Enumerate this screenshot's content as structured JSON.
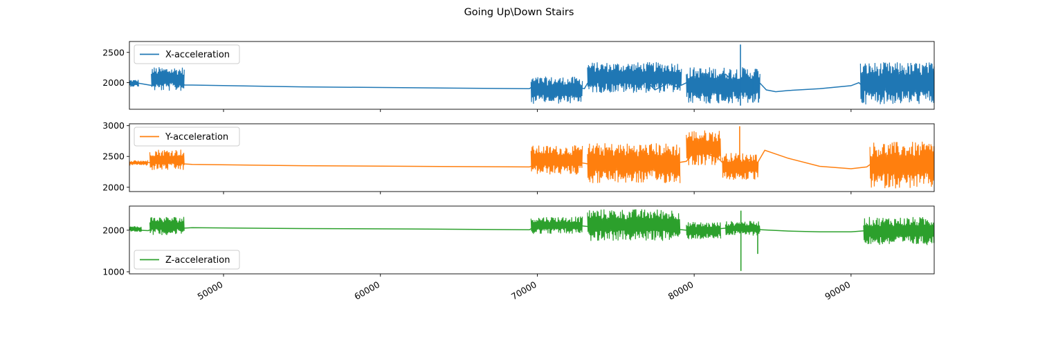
{
  "figure": {
    "title": "Going Up\\Down Stairs"
  },
  "chart_data": [
    {
      "type": "line",
      "title": "",
      "xlabel": "",
      "ylabel": "",
      "xlim": [
        44000,
        95300
      ],
      "ylim": [
        1560,
        2680
      ],
      "x_ticks": [
        50000,
        60000,
        70000,
        80000,
        90000
      ],
      "x_tick_labels": [
        "50000",
        "60000",
        "70000",
        "80000",
        "90000"
      ],
      "x_tick_labels_visible": false,
      "y_ticks": [
        2000,
        2500
      ],
      "y_tick_labels": [
        "2000",
        "2500"
      ],
      "grid": false,
      "legend_position": "upper left",
      "series": [
        {
          "name": "X-acceleration",
          "color": "#1f77b4",
          "x": [
            44000,
            44600,
            45500,
            45800,
            46300,
            46900,
            47300,
            47500,
            48000,
            55000,
            62000,
            69500,
            69800,
            70200,
            71000,
            72000,
            73000,
            73200,
            73500,
            74500,
            75500,
            76000,
            76500,
            77000,
            77500,
            78000,
            78400,
            78800,
            79200,
            79600,
            80000,
            80500,
            81000,
            81500,
            82000,
            82600,
            83000,
            83400,
            83800,
            84200,
            84600,
            85200,
            86000,
            88000,
            90000,
            90500,
            91000,
            91500,
            92000,
            92500,
            93000,
            93300,
            93800,
            94200,
            94700,
            95300
          ],
          "y": [
            2000,
            1990,
            1950,
            2080,
            2020,
            2150,
            2060,
            1960,
            1960,
            1930,
            1915,
            1900,
            1960,
            1880,
            1930,
            1970,
            1900,
            1990,
            2030,
            2010,
            2060,
            2200,
            2130,
            2010,
            1880,
            1950,
            2010,
            1930,
            1960,
            2010,
            2100,
            2060,
            2030,
            2080,
            2140,
            1990,
            2070,
            2090,
            2020,
            1990,
            1880,
            1850,
            1870,
            1900,
            1950,
            2000,
            1870,
            1850,
            1930,
            2040,
            2150,
            2200,
            1860,
            1900,
            1960,
            1880
          ],
          "ranges": [
            {
              "x": [
                44000,
                44600
              ],
              "low": 1930,
              "high": 2050
            },
            {
              "x": [
                45400,
                47500
              ],
              "low": 1860,
              "high": 2260
            },
            {
              "x": [
                69600,
                72900
              ],
              "low": 1650,
              "high": 2100
            },
            {
              "x": [
                73200,
                79200
              ],
              "low": 1830,
              "high": 2340
            },
            {
              "x": [
                79500,
                84200
              ],
              "low": 1650,
              "high": 2260
            },
            {
              "x": [
                90600,
                95300
              ],
              "low": 1640,
              "high": 2340
            }
          ],
          "spikes": [
            {
              "x": 82950,
              "low": 1620,
              "high": 2630
            },
            {
              "x": 83750,
              "low": 1670,
              "high": 2050
            },
            {
              "x": 84100,
              "low": 1670,
              "high": 2060
            }
          ]
        }
      ]
    },
    {
      "type": "line",
      "title": "",
      "xlabel": "",
      "ylabel": "",
      "xlim": [
        44000,
        95300
      ],
      "ylim": [
        1930,
        3030
      ],
      "x_ticks": [
        50000,
        60000,
        70000,
        80000,
        90000
      ],
      "x_tick_labels": [
        "50000",
        "60000",
        "70000",
        "80000",
        "90000"
      ],
      "x_tick_labels_visible": false,
      "y_ticks": [
        2000,
        2500,
        3000
      ],
      "y_tick_labels": [
        "2000",
        "2500",
        "3000"
      ],
      "grid": false,
      "legend_position": "upper left",
      "series": [
        {
          "name": "Y-acceleration",
          "color": "#ff7f0e",
          "x": [
            44000,
            44500,
            45000,
            45500,
            46200,
            46800,
            47400,
            48000,
            55000,
            62000,
            69500,
            69800,
            70500,
            71500,
            72500,
            73200,
            73800,
            74500,
            75500,
            76500,
            77500,
            78500,
            79000,
            79500,
            80000,
            80500,
            81000,
            81500,
            82000,
            82500,
            83000,
            83500,
            84000,
            84500,
            86000,
            88000,
            90000,
            91000,
            91500,
            92500,
            93500,
            94500,
            95300
          ],
          "y": [
            2400,
            2390,
            2410,
            2390,
            2480,
            2430,
            2380,
            2370,
            2350,
            2340,
            2330,
            2360,
            2420,
            2450,
            2410,
            2380,
            2430,
            2390,
            2400,
            2380,
            2420,
            2350,
            2400,
            2420,
            2570,
            2640,
            2520,
            2480,
            2350,
            2420,
            2380,
            2450,
            2380,
            2600,
            2470,
            2340,
            2300,
            2330,
            2420,
            2350,
            2450,
            2380,
            2480
          ],
          "ranges": [
            {
              "x": [
                44000,
                45200
              ],
              "low": 2350,
              "high": 2440
            },
            {
              "x": [
                45300,
                47500
              ],
              "low": 2270,
              "high": 2620
            },
            {
              "x": [
                69600,
                72900
              ],
              "low": 2200,
              "high": 2680
            },
            {
              "x": [
                73200,
                79100
              ],
              "low": 2060,
              "high": 2720
            },
            {
              "x": [
                79500,
                81700
              ],
              "low": 2350,
              "high": 2930
            },
            {
              "x": [
                81800,
                84100
              ],
              "low": 2110,
              "high": 2560
            },
            {
              "x": [
                91200,
                95300
              ],
              "low": 1980,
              "high": 2740
            }
          ],
          "spikes": [
            {
              "x": 82900,
              "low": 2320,
              "high": 2990
            }
          ]
        }
      ]
    },
    {
      "type": "line",
      "title": "",
      "xlabel": "",
      "ylabel": "",
      "xlim": [
        44000,
        95300
      ],
      "ylim": [
        950,
        2580
      ],
      "x_ticks": [
        50000,
        60000,
        70000,
        80000,
        90000
      ],
      "x_tick_labels": [
        "50000",
        "60000",
        "70000",
        "80000",
        "90000"
      ],
      "x_tick_labels_visible": true,
      "y_ticks": [
        1000,
        2000
      ],
      "y_tick_labels": [
        "1000",
        "2000"
      ],
      "grid": false,
      "legend_position": "lower left",
      "series": [
        {
          "name": "Z-acceleration",
          "color": "#2ca02c",
          "x": [
            44000,
            44600,
            45200,
            45800,
            46400,
            47000,
            47500,
            48000,
            55000,
            62000,
            69500,
            69800,
            70500,
            71500,
            72500,
            73200,
            74000,
            75000,
            76000,
            77000,
            78000,
            79000,
            79500,
            80000,
            81000,
            82000,
            82500,
            83000,
            83500,
            84000,
            84300,
            86000,
            88000,
            90000,
            91000,
            92000,
            93000,
            94000,
            95300
          ],
          "y": [
            2060,
            2000,
            1990,
            2080,
            2150,
            2100,
            2050,
            2060,
            2040,
            2030,
            2010,
            2080,
            2150,
            2130,
            2120,
            2090,
            2060,
            2090,
            2040,
            2110,
            2030,
            2020,
            2000,
            2070,
            2010,
            2050,
            2010,
            2060,
            2000,
            2040,
            2010,
            1980,
            1960,
            1960,
            1990,
            2040,
            2080,
            2060,
            2090
          ],
          "ranges": [
            {
              "x": [
                44000,
                44800
              ],
              "low": 1960,
              "high": 2100
            },
            {
              "x": [
                45300,
                47500
              ],
              "low": 1880,
              "high": 2330
            },
            {
              "x": [
                69600,
                72900
              ],
              "low": 1910,
              "high": 2330
            },
            {
              "x": [
                73200,
                79100
              ],
              "low": 1740,
              "high": 2510
            },
            {
              "x": [
                79500,
                81700
              ],
              "low": 1780,
              "high": 2200
            },
            {
              "x": [
                82000,
                84200
              ],
              "low": 1870,
              "high": 2220
            },
            {
              "x": [
                90800,
                95300
              ],
              "low": 1640,
              "high": 2320
            }
          ],
          "spikes": [
            {
              "x": 82980,
              "low": 1020,
              "high": 2470
            },
            {
              "x": 84050,
              "low": 1430,
              "high": 2060
            }
          ]
        }
      ]
    }
  ]
}
